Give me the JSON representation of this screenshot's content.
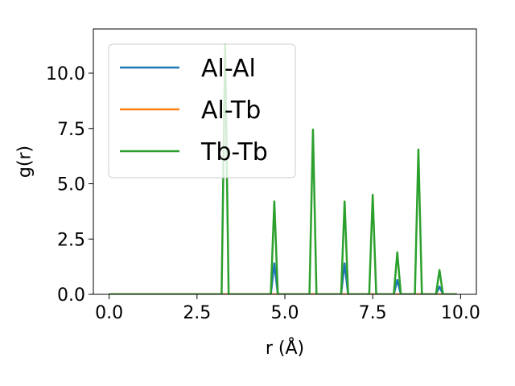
{
  "chart_data": {
    "type": "line",
    "title": "",
    "xlabel": "r (Å)",
    "ylabel": "g(r)",
    "xlim": [
      -0.45,
      10.45
    ],
    "ylim": [
      0,
      12
    ],
    "xticks": [
      "0.0",
      "2.5",
      "5.0",
      "7.5",
      "10.0"
    ],
    "yticks": [
      "0.0",
      "2.5",
      "5.0",
      "7.5",
      "10.0"
    ],
    "grid": false,
    "legend_position": "top-left",
    "series": [
      {
        "name": "Al-Al",
        "color": "#1f77b4",
        "points": [
          [
            0.0,
            0
          ],
          [
            4.6,
            0
          ],
          [
            4.7,
            1.4
          ],
          [
            4.8,
            0
          ],
          [
            6.6,
            0
          ],
          [
            6.7,
            1.4
          ],
          [
            6.8,
            0
          ],
          [
            8.1,
            0
          ],
          [
            8.2,
            0.65
          ],
          [
            8.3,
            0
          ],
          [
            9.3,
            0
          ],
          [
            9.4,
            0.35
          ],
          [
            9.5,
            0
          ],
          [
            9.9,
            0
          ]
        ]
      },
      {
        "name": "Al-Tb",
        "color": "#ff7f0e",
        "points": [
          [
            0.0,
            0
          ],
          [
            9.9,
            0
          ]
        ]
      },
      {
        "name": "Tb-Tb",
        "color": "#2ca02c",
        "points": [
          [
            0.0,
            0
          ],
          [
            3.2,
            0
          ],
          [
            3.3,
            11.3
          ],
          [
            3.4,
            0
          ],
          [
            4.6,
            0
          ],
          [
            4.7,
            4.2
          ],
          [
            4.8,
            0
          ],
          [
            5.7,
            0
          ],
          [
            5.8,
            7.45
          ],
          [
            5.9,
            0
          ],
          [
            6.6,
            0
          ],
          [
            6.7,
            4.2
          ],
          [
            6.8,
            0
          ],
          [
            7.4,
            0
          ],
          [
            7.5,
            4.5
          ],
          [
            7.6,
            0
          ],
          [
            8.1,
            0
          ],
          [
            8.2,
            1.9
          ],
          [
            8.3,
            0
          ],
          [
            8.7,
            0
          ],
          [
            8.8,
            6.55
          ],
          [
            8.9,
            0
          ],
          [
            9.3,
            0
          ],
          [
            9.4,
            1.1
          ],
          [
            9.5,
            0
          ],
          [
            9.9,
            0
          ]
        ]
      }
    ]
  }
}
